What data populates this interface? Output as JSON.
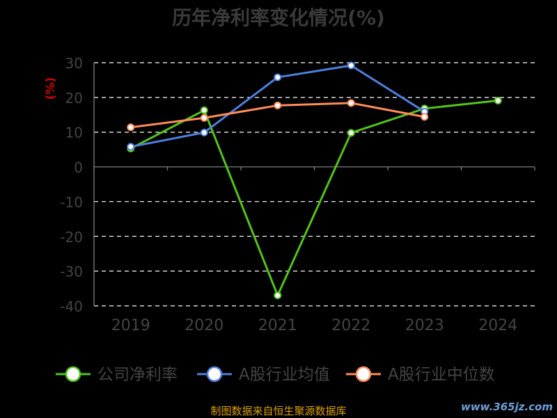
{
  "chart_data": {
    "type": "line",
    "title": "历年净利率变化情况(%)",
    "ylabel": "(%)",
    "categories": [
      "2019",
      "2020",
      "2021",
      "2022",
      "2023",
      "2024"
    ],
    "ylim": [
      -40,
      30
    ],
    "yticks": [
      "30",
      "20",
      "10",
      "0",
      "-10",
      "-20",
      "-30",
      "-40"
    ],
    "grid": true,
    "legend_position": "bottom",
    "series": [
      {
        "name": "公司净利率",
        "color": "#52c41a",
        "values": [
          5.3,
          16.3,
          -37.0,
          9.8,
          16.8,
          19.1
        ]
      },
      {
        "name": "A股行业均值",
        "color": "#4f7fdd",
        "values": [
          5.8,
          9.9,
          25.8,
          29.2,
          15.9,
          null
        ]
      },
      {
        "name": "A股行业中位数",
        "color": "#ff8c5a",
        "values": [
          11.4,
          14.1,
          17.7,
          18.4,
          14.4,
          null
        ]
      }
    ]
  },
  "footer": "制图数据来自恒生聚源数据库",
  "watermark": "www.365jz.com"
}
